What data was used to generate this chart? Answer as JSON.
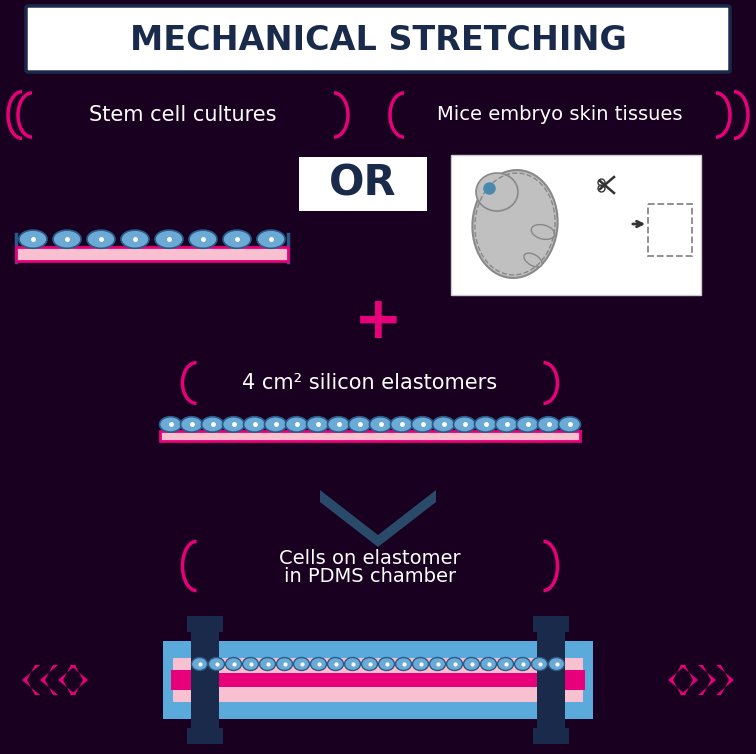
{
  "bg_color": "#1a0020",
  "title_text": "MECHANICAL STRETCHING",
  "title_bg": "#ffffff",
  "title_border": "#1a2a4a",
  "title_color": "#1a2a4a",
  "label1": "Stem cell cultures",
  "label2": "Mice embryo skin tissues",
  "label3": "4 cm² silicon elastomers",
  "label4": "Cells on elastomer\nin PDMS chamber",
  "bracket_color": "#e8007a",
  "text_color": "#ffffff",
  "pink_light": "#f9c0d0",
  "pink_dark": "#e8007a",
  "cell_body": "#6aaad4",
  "cell_border": "#2a5a8a",
  "blue_chamber": "#5aabdb",
  "dark_pole": "#1a2a4a",
  "or_bg": "#ffffff",
  "or_color": "#1a2a4a",
  "arrow_fill": "#2a4a6a"
}
